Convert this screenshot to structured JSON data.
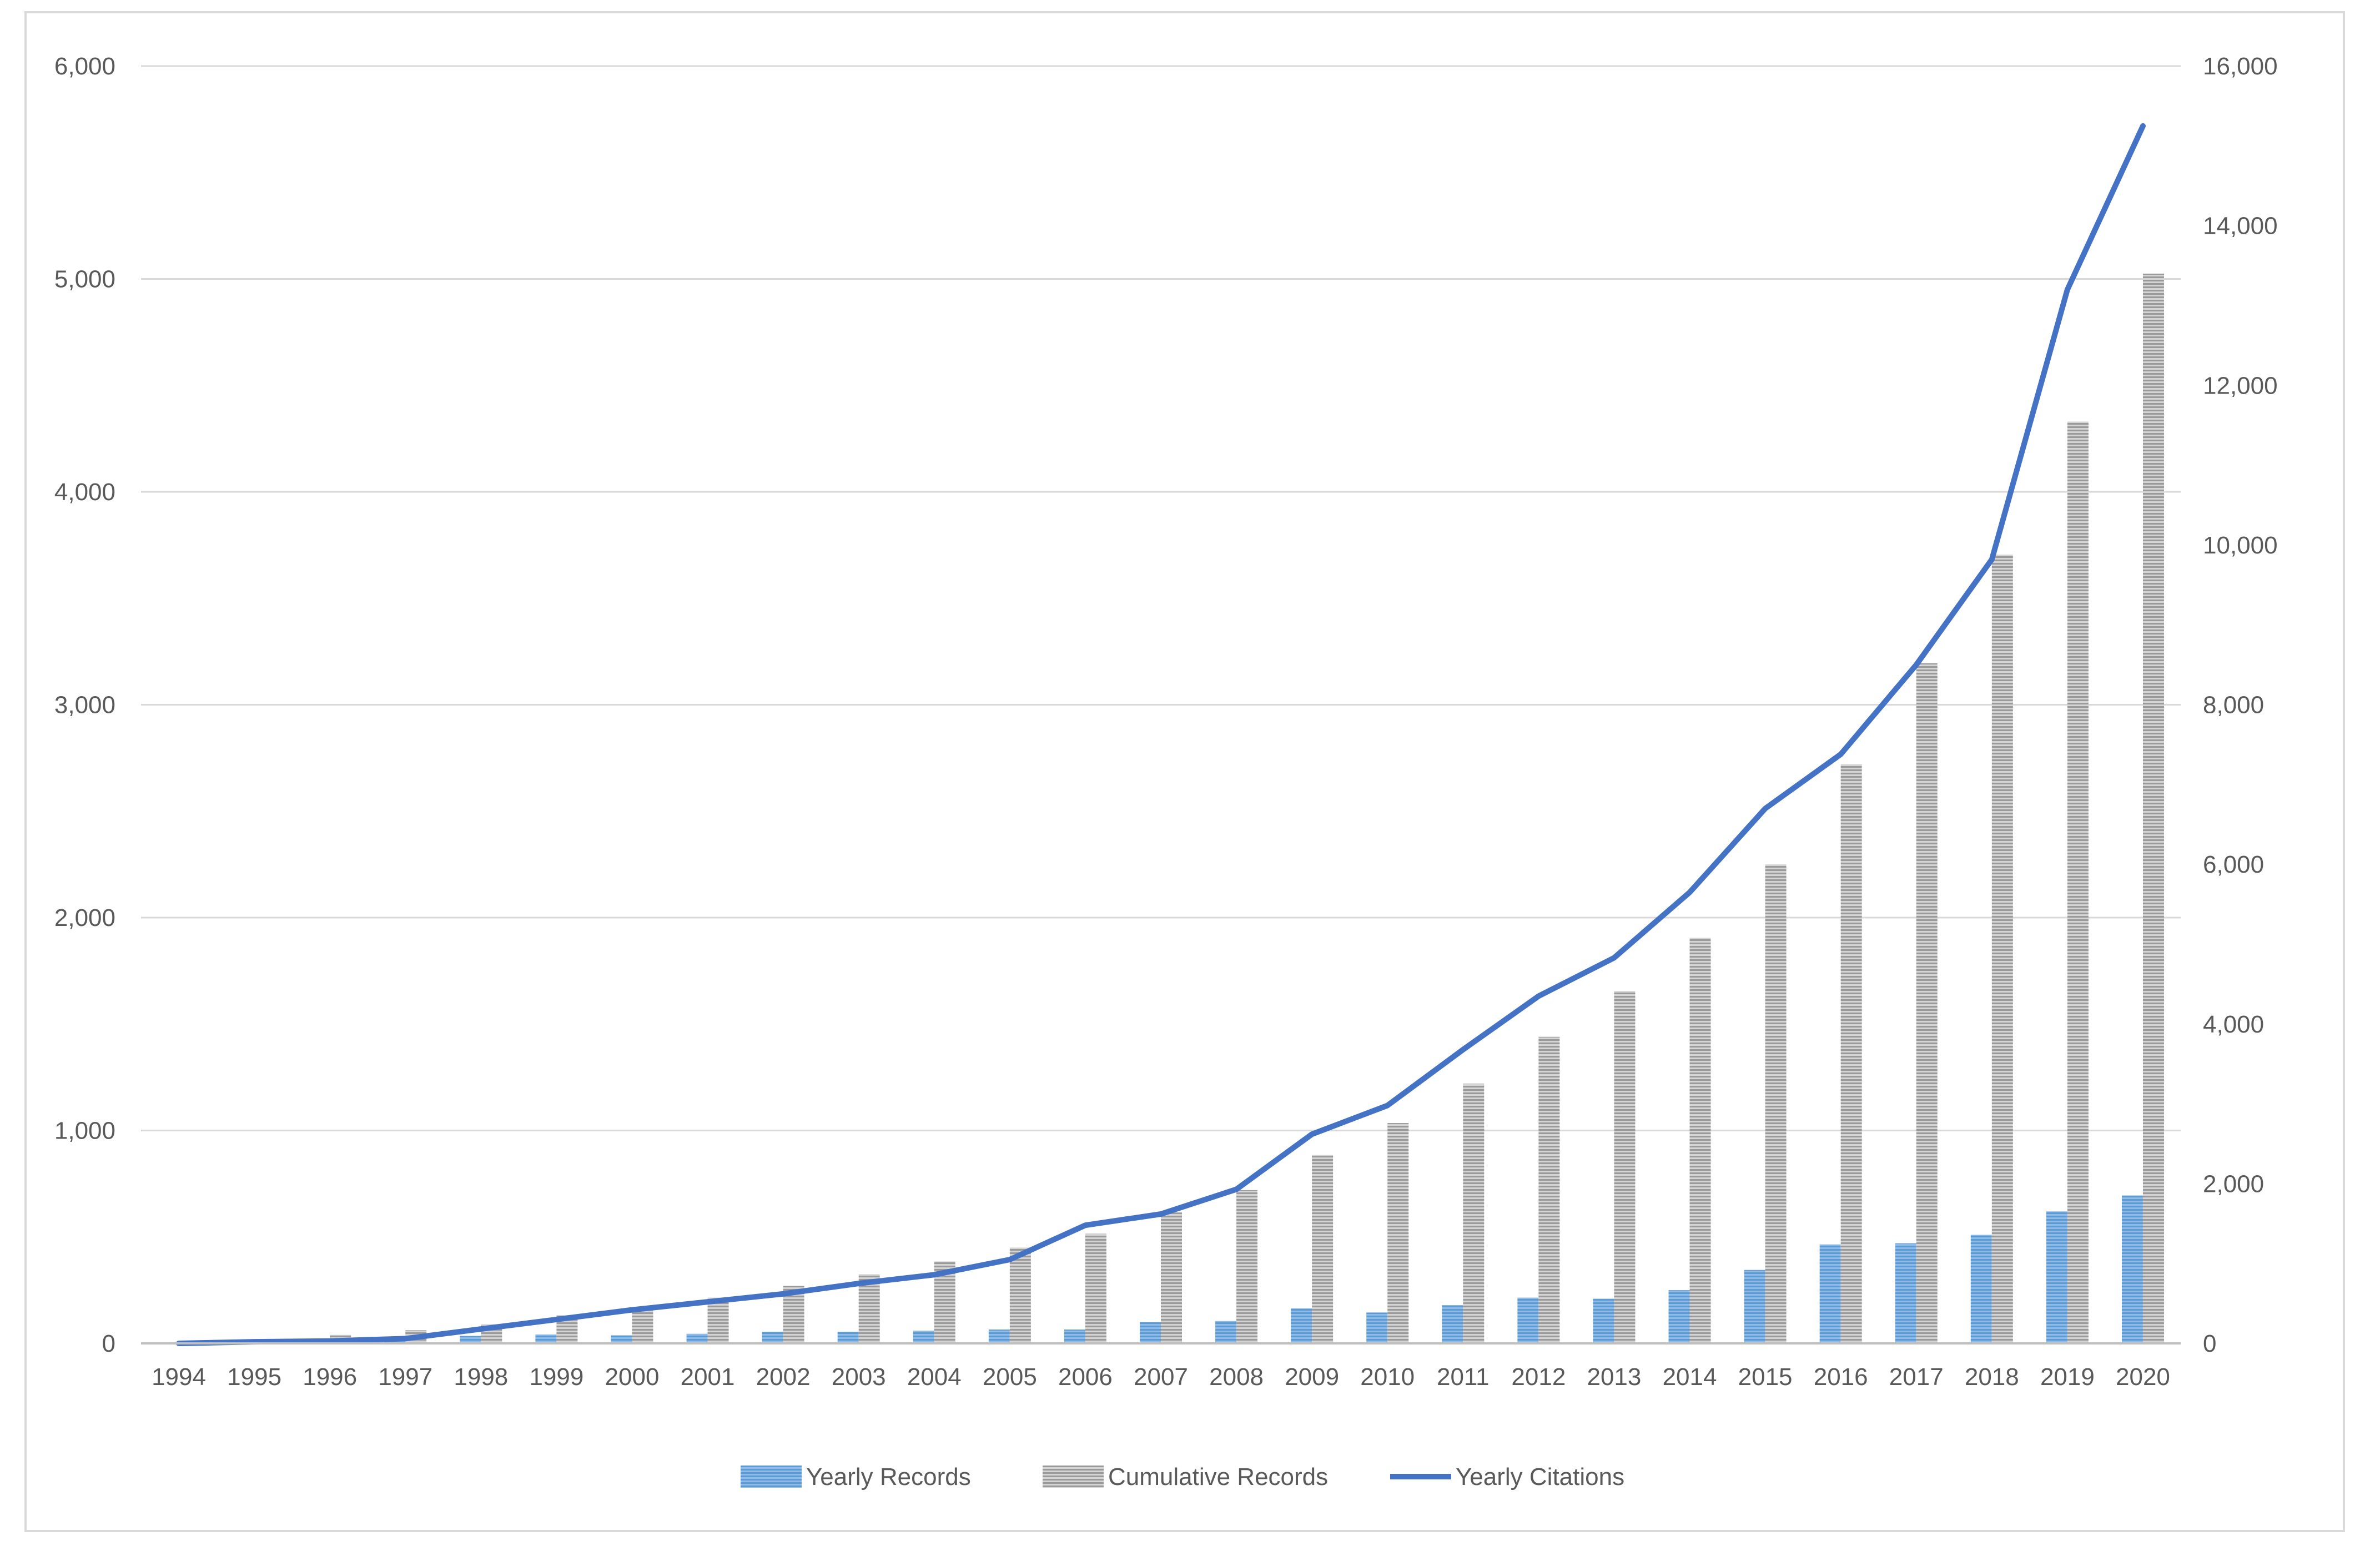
{
  "chart_data": {
    "type": "bar",
    "title": "",
    "xlabel": "",
    "ylabel": "",
    "y2label": "",
    "categories": [
      "1994",
      "1995",
      "1996",
      "1997",
      "1998",
      "1999",
      "2000",
      "2001",
      "2002",
      "2003",
      "2004",
      "2005",
      "2006",
      "2007",
      "2008",
      "2009",
      "2010",
      "2011",
      "2012",
      "2013",
      "2014",
      "2015",
      "2016",
      "2017",
      "2018",
      "2019",
      "2020"
    ],
    "ylim": [
      0,
      6000
    ],
    "y_ticks": [
      "0",
      "1,000",
      "2,000",
      "3,000",
      "4,000",
      "5,000",
      "6,000"
    ],
    "y2lim": [
      0,
      16000
    ],
    "y2_ticks": [
      "0",
      "2,000",
      "4,000",
      "6,000",
      "8,000",
      "10,000",
      "12,000",
      "14,000",
      "16,000"
    ],
    "grid": true,
    "legend_position": "bottom",
    "series": [
      {
        "name": "Yearly Records",
        "type": "bar",
        "axis": "left",
        "color": "#5b9bd5",
        "values": [
          5,
          8,
          12,
          20,
          35,
          42,
          38,
          45,
          55,
          55,
          60,
          65,
          65,
          100,
          105,
          165,
          145,
          180,
          215,
          210,
          250,
          345,
          465,
          470,
          510,
          620,
          695
        ]
      },
      {
        "name": "Cumulative Records",
        "type": "bar",
        "axis": "left",
        "color": "#a5a5a5",
        "values": [
          5,
          13,
          40,
          62,
          90,
          132,
          170,
          215,
          270,
          325,
          385,
          450,
          515,
          615,
          720,
          885,
          1035,
          1220,
          1440,
          1655,
          1905,
          2250,
          2720,
          3195,
          3705,
          4330,
          5025
        ]
      },
      {
        "name": "Yearly Citations",
        "type": "line",
        "axis": "right",
        "color": "#4472c4",
        "values": [
          0,
          20,
          30,
          60,
          180,
          300,
          420,
          520,
          620,
          750,
          860,
          1050,
          1480,
          1620,
          1930,
          2620,
          2980,
          3680,
          4350,
          4830,
          5650,
          6700,
          7380,
          8500,
          9820,
          13200,
          15250
        ]
      }
    ]
  }
}
